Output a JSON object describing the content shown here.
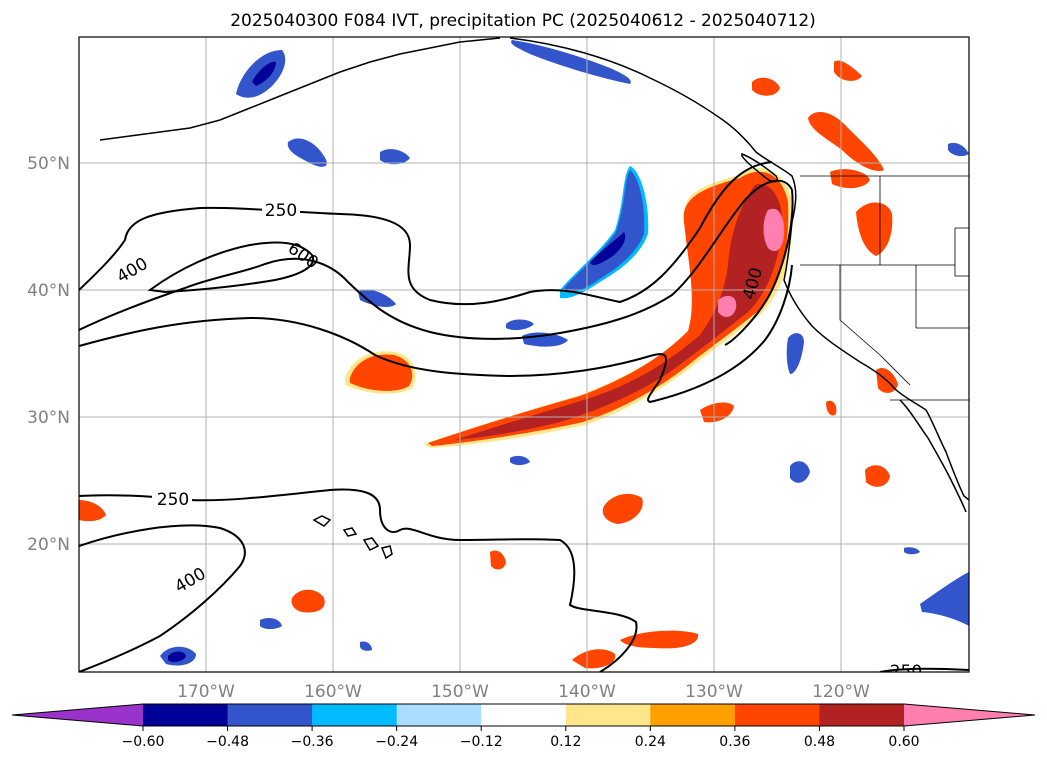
{
  "title": "2025040300 F084 IVT, precipitation PC (2025040612 - 2025040712)",
  "lon_labels": [
    "170°W",
    "160°W",
    "150°W",
    "140°W",
    "130°W",
    "120°W"
  ],
  "lat_labels": [
    "50°N",
    "40°N",
    "30°N",
    "20°N"
  ],
  "contour_labels": [
    "250",
    "600",
    "400",
    "400",
    "250",
    "400",
    "250"
  ],
  "colorbar": {
    "tick_labels": [
      "−0.60",
      "−0.48",
      "−0.36",
      "−0.24",
      "−0.12",
      "0.12",
      "0.24",
      "0.36",
      "0.48",
      "0.60"
    ],
    "colors": [
      "#9933cc",
      "#000099",
      "#3355cc",
      "#00bbff",
      "#aaddff",
      "#ffffff",
      "#ffe68a",
      "#ffa000",
      "#ff4500",
      "#b22222",
      "#ff7fae"
    ]
  },
  "colors": {
    "grid": "#b0b0b0",
    "coast": "#000000",
    "contour": "#000000",
    "tick_text": "#808080"
  }
}
